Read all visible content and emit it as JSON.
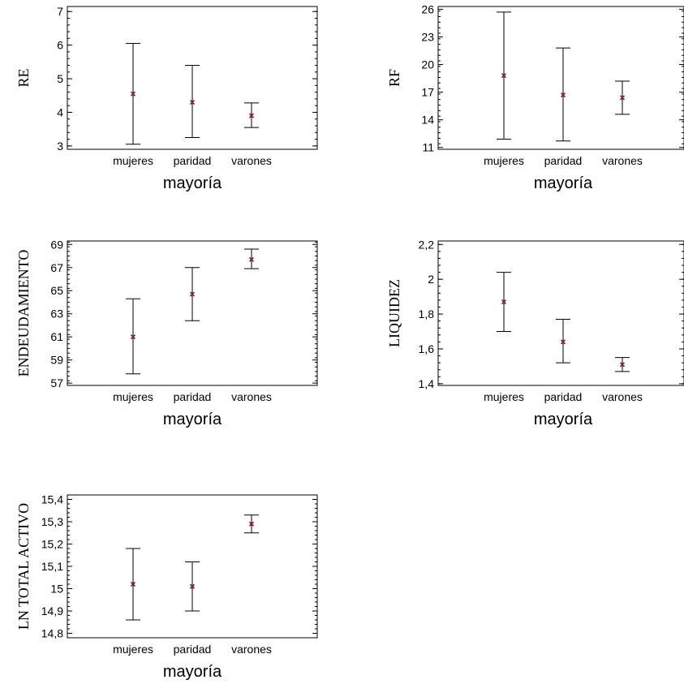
{
  "chart_data": [
    {
      "type": "errorbar",
      "ylabel": "RE",
      "xlabel": "mayoría",
      "categories": [
        "mujeres",
        "paridad",
        "varones"
      ],
      "ylim": [
        2.9,
        7.15
      ],
      "yticks": [
        "3",
        "4",
        "5",
        "6",
        "7"
      ],
      "ytick_values": [
        3,
        4,
        5,
        6,
        7
      ],
      "minor_step": 0.2,
      "means": [
        4.55,
        4.3,
        3.9
      ],
      "lower": [
        3.05,
        3.25,
        3.55
      ],
      "upper": [
        6.05,
        5.4,
        4.28
      ]
    },
    {
      "type": "errorbar",
      "ylabel": "RF",
      "xlabel": "mayoría",
      "categories": [
        "mujeres",
        "paridad",
        "varones"
      ],
      "ylim": [
        10.8,
        26.3
      ],
      "yticks": [
        "11",
        "14",
        "17",
        "20",
        "23",
        "26"
      ],
      "ytick_values": [
        11,
        14,
        17,
        20,
        23,
        26
      ],
      "minor_step": 0.6,
      "means": [
        18.8,
        16.7,
        16.4
      ],
      "lower": [
        11.9,
        11.7,
        14.6
      ],
      "upper": [
        25.7,
        21.8,
        18.2
      ]
    },
    {
      "type": "errorbar",
      "ylabel": "ENDEUDAMIENTO",
      "xlabel": "mayoría",
      "categories": [
        "mujeres",
        "paridad",
        "varones"
      ],
      "ylim": [
        56.8,
        69.3
      ],
      "yticks": [
        "57",
        "59",
        "61",
        "63",
        "65",
        "67",
        "69"
      ],
      "ytick_values": [
        57,
        59,
        61,
        63,
        65,
        67,
        69
      ],
      "minor_step": 0.4,
      "means": [
        61.0,
        64.7,
        67.7
      ],
      "lower": [
        57.8,
        62.4,
        66.9
      ],
      "upper": [
        64.3,
        67.0,
        68.6
      ]
    },
    {
      "type": "errorbar",
      "ylabel": "LIQUIDEZ",
      "xlabel": "mayoría",
      "categories": [
        "mujeres",
        "paridad",
        "varones"
      ],
      "ylim": [
        1.39,
        2.22
      ],
      "yticks": [
        "1,4",
        "1,6",
        "1,8",
        "2",
        "2,2"
      ],
      "ytick_values": [
        1.4,
        1.6,
        1.8,
        2.0,
        2.2
      ],
      "minor_step": 0.04,
      "means": [
        1.87,
        1.64,
        1.51
      ],
      "lower": [
        1.7,
        1.52,
        1.47
      ],
      "upper": [
        2.04,
        1.77,
        1.55
      ]
    },
    {
      "type": "errorbar",
      "ylabel": "LN TOTAL ACTIVO",
      "xlabel": "mayoría",
      "categories": [
        "mujeres",
        "paridad",
        "varones"
      ],
      "ylim": [
        14.78,
        15.42
      ],
      "yticks": [
        "14,8",
        "14,9",
        "15",
        "15,1",
        "15,2",
        "15,3",
        "15,4"
      ],
      "ytick_values": [
        14.8,
        14.9,
        15.0,
        15.1,
        15.2,
        15.3,
        15.4
      ],
      "minor_step": 0.02,
      "means": [
        15.02,
        15.01,
        15.29
      ],
      "lower": [
        14.86,
        14.9,
        15.25
      ],
      "upper": [
        15.18,
        15.12,
        15.33
      ]
    }
  ],
  "colors": {
    "mean_marker": "#8b1a3a",
    "axis": "#000000",
    "background": "#ffffff"
  }
}
